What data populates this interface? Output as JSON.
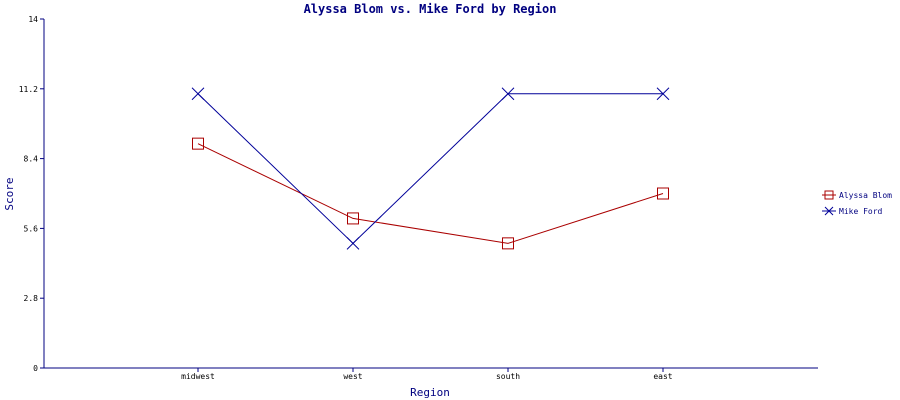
{
  "chart_data": {
    "type": "line",
    "title": "Alyssa Blom vs. Mike Ford by Region",
    "xlabel": "Region",
    "ylabel": "Score",
    "categories": [
      "midwest",
      "west",
      "south",
      "east"
    ],
    "ylim": [
      0,
      14
    ],
    "yticks": [
      "0",
      "2.8",
      "5.6",
      "8.4",
      "11.2",
      "14"
    ],
    "series": [
      {
        "name": "Alyssa Blom",
        "color": "#aa0000",
        "marker": "square",
        "values": [
          9.0,
          6.0,
          5.0,
          7.0
        ]
      },
      {
        "name": "Mike Ford",
        "color": "#000099",
        "marker": "x",
        "values": [
          11.0,
          5.0,
          11.0,
          11.0
        ]
      }
    ],
    "legend_position": "right"
  }
}
